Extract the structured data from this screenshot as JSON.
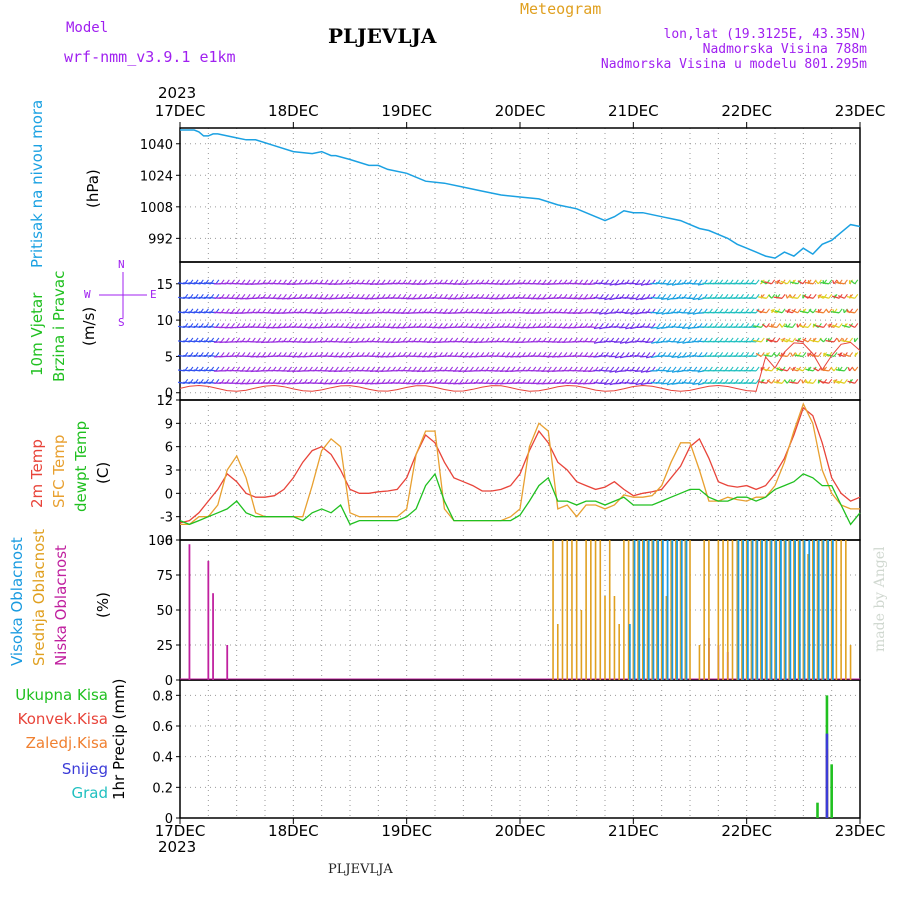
{
  "header": {
    "model_label": "Model",
    "model_name": "wrf-nmm_v3.9.1 e1km",
    "station": "PLJEVLJA",
    "meteogram": "Meteogram",
    "coords": "lon,lat (19.3125E, 43.35N)",
    "elevation": "Nadmorska Visina 788m",
    "model_elevation": "Nadmorska Visina u modelu 801.295m",
    "year_top": "2023",
    "year_bottom": "2023",
    "footer_station": "PLJEVLJA",
    "credit": "made by Angel"
  },
  "panel_labels": {
    "pressure": [
      "Pritisak na nivou mora",
      "(hPa)"
    ],
    "wind": [
      "10m Vjetar",
      "Brzina i Pravac",
      "(m/s)"
    ],
    "compass": [
      "N",
      "E",
      "S",
      "W"
    ],
    "temp": [
      "2m Temp",
      "SFC Temp",
      "dewpt Temp",
      "(C)"
    ],
    "cloud": [
      "Visoka Oblacnost",
      "Srednja Oblacnost",
      "Niska Oblacnost",
      "(%)"
    ],
    "precip": [
      "Ukupna Kisa",
      "Konvek.Kisa",
      "Zaledj.Kisa",
      "Snijeg",
      "Grad",
      "1hr Precip (mm)"
    ]
  },
  "colors": {
    "pressure": "#1ba1e2",
    "temp2m": "#e8443a",
    "sfc": "#e8a030",
    "dew": "#20c020",
    "high_cloud": "#1b9be0",
    "mid_cloud": "#e0a020",
    "low_cloud": "#c0209f",
    "total_rain": "#20c020",
    "conv_rain": "#e8443a",
    "frz_rain": "#f08030",
    "snow": "#3c3cd8",
    "hail": "#20c0c0"
  },
  "chart_data": [
    {
      "type": "line",
      "name": "pressure",
      "x_labels": [
        "17DEC",
        "18DEC",
        "19DEC",
        "20DEC",
        "21DEC",
        "22DEC",
        "23DEC"
      ],
      "ylabel": "(hPa)",
      "ylim": [
        980,
        1048
      ],
      "yticks": [
        992,
        1008,
        1024,
        1040
      ],
      "x": [
        0,
        0.5,
        1,
        2,
        2.5,
        3,
        4,
        5,
        6,
        7,
        8,
        10,
        12,
        14,
        16,
        20,
        24,
        28,
        30,
        32,
        33,
        36,
        40,
        42,
        44,
        48,
        52,
        56,
        60,
        64,
        68,
        72,
        76,
        80,
        84,
        88,
        90,
        92,
        94,
        96,
        98,
        100,
        102,
        104,
        106,
        108,
        110,
        112,
        114,
        116,
        118,
        120,
        122,
        124,
        126,
        128,
        130,
        132,
        134,
        136,
        138,
        140,
        142,
        144
      ],
      "y": [
        1047,
        1047,
        1047,
        1047,
        1047,
        1047,
        1046,
        1044,
        1044,
        1045,
        1045,
        1044,
        1043,
        1042,
        1042,
        1039,
        1036,
        1035,
        1036,
        1034,
        1034,
        1032,
        1029,
        1029,
        1027,
        1025,
        1021,
        1020,
        1018,
        1016,
        1014,
        1013,
        1012,
        1009,
        1007,
        1003,
        1001,
        1003,
        1006,
        1005,
        1005,
        1004,
        1003,
        1002,
        1001,
        999,
        997,
        996,
        994,
        992,
        989,
        987,
        985,
        983,
        982,
        985,
        983,
        987,
        984,
        989,
        991,
        995,
        999,
        998
      ]
    },
    {
      "type": "scatter",
      "name": "wind",
      "x_labels": [
        "17DEC",
        "18DEC",
        "19DEC",
        "20DEC",
        "21DEC",
        "22DEC",
        "23DEC"
      ],
      "ylabel": "(m/s)",
      "ylim": [
        -1,
        18
      ],
      "yticks": [
        0,
        5,
        10,
        15
      ]
    },
    {
      "type": "line",
      "name": "temperature",
      "x_labels": [
        "17DEC",
        "18DEC",
        "19DEC",
        "20DEC",
        "21DEC",
        "22DEC",
        "23DEC"
      ],
      "ylabel": "(C)",
      "ylim": [
        -6,
        12
      ],
      "yticks": [
        -6,
        -3,
        0,
        3,
        6,
        9,
        12
      ],
      "x": [
        0,
        2,
        4,
        6,
        8,
        10,
        12,
        14,
        16,
        18,
        20,
        22,
        24,
        26,
        28,
        30,
        32,
        34,
        36,
        38,
        40,
        42,
        44,
        46,
        48,
        50,
        52,
        54,
        56,
        58,
        60,
        62,
        64,
        66,
        68,
        70,
        72,
        74,
        76,
        78,
        80,
        82,
        84,
        86,
        88,
        90,
        92,
        94,
        96,
        98,
        100,
        102,
        104,
        106,
        108,
        110,
        112,
        114,
        116,
        118,
        120,
        122,
        124,
        126,
        128,
        130,
        132,
        134,
        136,
        138,
        140,
        142,
        144
      ],
      "series": [
        {
          "name": "2m Temp",
          "values": [
            -3.8,
            -3.5,
            -2.5,
            -1,
            0.5,
            2.5,
            1.5,
            0,
            -0.5,
            -0.5,
            -0.3,
            0.5,
            2,
            4,
            5.5,
            6,
            5,
            3,
            0.5,
            0,
            0,
            0.2,
            0.3,
            0.5,
            2,
            5,
            7.5,
            6.5,
            4,
            2,
            1.5,
            1,
            0.3,
            0.3,
            0.5,
            1,
            2.5,
            5.5,
            8,
            6.5,
            4,
            3,
            1.5,
            1,
            0.5,
            0.8,
            1.5,
            0.5,
            -0.3,
            0,
            0.2,
            0.5,
            2,
            3.5,
            6,
            7,
            4.5,
            1.5,
            1,
            0.8,
            1,
            0.5,
            1,
            2.5,
            4.5,
            7.5,
            11,
            10,
            6.5,
            2,
            0,
            -1,
            -0.5
          ]
        },
        {
          "name": "SFC Temp",
          "values": [
            -4,
            -4,
            -3,
            -3,
            -1.5,
            3,
            4.8,
            2,
            -2.5,
            -3,
            -3,
            -3,
            -3,
            -3,
            1,
            5.5,
            7,
            6,
            -2.5,
            -3,
            -3,
            -3,
            -3,
            -3,
            -2,
            5,
            8,
            8,
            -2,
            -3.5,
            -3.5,
            -3.5,
            -3.5,
            -3.5,
            -3.5,
            -3,
            -2,
            6,
            9,
            8,
            -2,
            -1.5,
            -3,
            -1.5,
            -1.5,
            -2,
            -1.5,
            -0.2,
            -0.5,
            -0.5,
            -0.3,
            1,
            4,
            6.5,
            6.5,
            3,
            -1,
            -1,
            -0.5,
            -0.8,
            -1,
            -0.5,
            -0.5,
            1,
            4,
            8,
            11.5,
            9,
            3,
            0,
            -1.5,
            -2,
            -2
          ]
        },
        {
          "name": "dewpt Temp",
          "values": [
            -3.5,
            -4,
            -3.5,
            -3,
            -2.5,
            -2,
            -1,
            -2.5,
            -3,
            -3,
            -3,
            -3,
            -3,
            -3.5,
            -2.5,
            -2,
            -2.5,
            -1.5,
            -4,
            -3.5,
            -3.5,
            -3.5,
            -3.5,
            -3.5,
            -3,
            -2,
            1,
            2.5,
            -1,
            -3.5,
            -3.5,
            -3.5,
            -3.5,
            -3.5,
            -3.5,
            -3.5,
            -2.8,
            -1,
            1,
            2,
            -1,
            -1,
            -1.5,
            -1,
            -1,
            -1.5,
            -1,
            -0.5,
            -1.5,
            -1.5,
            -1.5,
            -1,
            -0.5,
            0,
            0.5,
            0.5,
            -0.5,
            -1,
            -1,
            -0.5,
            -0.5,
            -1,
            -0.5,
            0.5,
            1,
            1.5,
            2.5,
            2,
            1,
            1,
            -1.5,
            -4,
            -2.5
          ]
        }
      ]
    },
    {
      "type": "bar",
      "name": "cloud",
      "x_labels": [
        "17DEC",
        "18DEC",
        "19DEC",
        "20DEC",
        "21DEC",
        "22DEC",
        "23DEC"
      ],
      "ylabel": "(%)",
      "ylim": [
        0,
        100
      ],
      "yticks": [
        0,
        25,
        50,
        75,
        100
      ],
      "series": [
        {
          "name": "Niska Oblacnost",
          "x": [
            2,
            6,
            7,
            10,
            112,
            114,
            116
          ],
          "values": [
            97,
            85,
            62,
            25,
            30,
            25,
            20
          ]
        },
        {
          "name": "Srednja Oblacnost",
          "x": [
            79,
            80,
            81,
            82,
            83,
            84,
            85,
            86,
            87,
            88,
            89,
            90,
            91,
            92,
            93,
            94,
            95,
            96,
            97,
            98,
            99,
            100,
            101,
            102,
            103,
            104,
            105,
            106,
            107,
            108,
            110,
            111,
            112,
            114,
            115,
            116,
            117,
            118,
            119,
            120,
            121,
            122,
            123,
            124,
            125,
            126,
            127,
            128,
            129,
            130,
            131,
            132,
            133,
            134,
            135,
            136,
            137,
            138,
            139,
            140,
            141,
            142
          ],
          "values": [
            100,
            40,
            100,
            100,
            100,
            100,
            50,
            100,
            100,
            100,
            100,
            60,
            100,
            60,
            40,
            100,
            100,
            100,
            100,
            100,
            100,
            100,
            100,
            100,
            60,
            100,
            100,
            100,
            100,
            100,
            25,
            100,
            100,
            100,
            100,
            100,
            100,
            100,
            100,
            100,
            100,
            100,
            100,
            100,
            100,
            100,
            100,
            100,
            100,
            100,
            100,
            100,
            90,
            100,
            100,
            100,
            100,
            100,
            100,
            100,
            100,
            25
          ]
        },
        {
          "name": "Visoka Oblacnost",
          "x": [
            95,
            96,
            97,
            98,
            99,
            100,
            101,
            102,
            103,
            104,
            105,
            106,
            107,
            118,
            119,
            120,
            121,
            122,
            123,
            124,
            125,
            126,
            127,
            128,
            129,
            130,
            131,
            132,
            133,
            134,
            135,
            136,
            137,
            138
          ],
          "values": [
            40,
            100,
            100,
            100,
            100,
            100,
            100,
            100,
            100,
            100,
            100,
            100,
            100,
            100,
            100,
            100,
            100,
            100,
            100,
            100,
            100,
            100,
            100,
            100,
            100,
            100,
            100,
            100,
            100,
            100,
            100,
            100,
            100,
            100
          ]
        }
      ]
    },
    {
      "type": "bar",
      "name": "precip",
      "x_labels": [
        "17DEC",
        "18DEC",
        "19DEC",
        "20DEC",
        "21DEC",
        "22DEC",
        "23DEC"
      ],
      "ylabel": "1hr Precip (mm)",
      "ylim": [
        0,
        0.9
      ],
      "yticks": [
        0,
        0.2,
        0.4,
        0.6,
        0.8
      ],
      "series": [
        {
          "name": "Ukupna Kisa",
          "x": [
            135,
            137,
            138
          ],
          "values": [
            0.1,
            0.8,
            0.35
          ]
        },
        {
          "name": "Zaledj.Kisa",
          "x": [
            137
          ],
          "values": [
            0.45
          ]
        },
        {
          "name": "Snijeg",
          "x": [
            137
          ],
          "values": [
            0.55
          ]
        }
      ]
    }
  ]
}
